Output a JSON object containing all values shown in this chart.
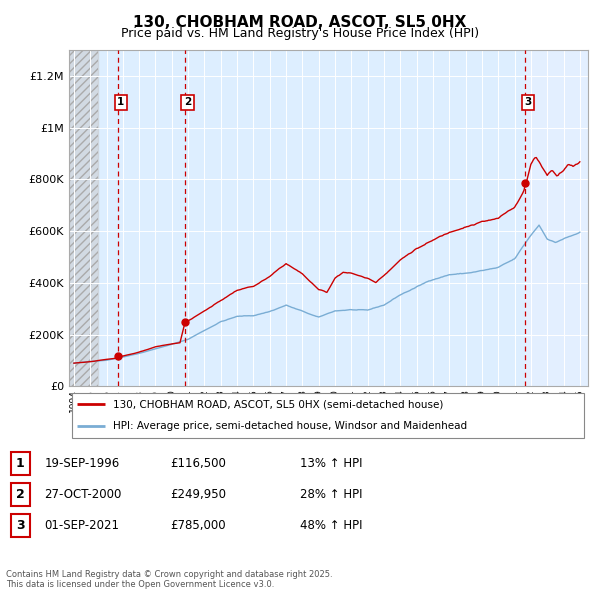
{
  "title": "130, CHOBHAM ROAD, ASCOT, SL5 0HX",
  "subtitle": "Price paid vs. HM Land Registry's House Price Index (HPI)",
  "legend_line1": "130, CHOBHAM ROAD, ASCOT, SL5 0HX (semi-detached house)",
  "legend_line2": "HPI: Average price, semi-detached house, Windsor and Maidenhead",
  "footer": "Contains HM Land Registry data © Crown copyright and database right 2025.\nThis data is licensed under the Open Government Licence v3.0.",
  "sale_color": "#cc0000",
  "hpi_color": "#7aadd4",
  "bg_color": "#ddeeff",
  "xlim_start": 1993.7,
  "xlim_end": 2025.5,
  "ylim": [
    0,
    1300000
  ],
  "yticks": [
    0,
    200000,
    400000,
    600000,
    800000,
    1000000,
    1200000
  ],
  "ytick_labels": [
    "£0",
    "£200K",
    "£400K",
    "£600K",
    "£800K",
    "£1M",
    "£1.2M"
  ],
  "sales": [
    {
      "year": 1996.72,
      "price": 116500,
      "label": "1"
    },
    {
      "year": 2000.82,
      "price": 249950,
      "label": "2"
    },
    {
      "year": 2021.67,
      "price": 785000,
      "label": "3"
    }
  ],
  "annotations": [
    {
      "num": "1",
      "date": "19-SEP-1996",
      "price": "£116,500",
      "pct": "13% ↑ HPI"
    },
    {
      "num": "2",
      "date": "27-OCT-2000",
      "price": "£249,950",
      "pct": "28% ↑ HPI"
    },
    {
      "num": "3",
      "date": "01-SEP-2021",
      "price": "£785,000",
      "pct": "48% ↑ HPI"
    }
  ]
}
